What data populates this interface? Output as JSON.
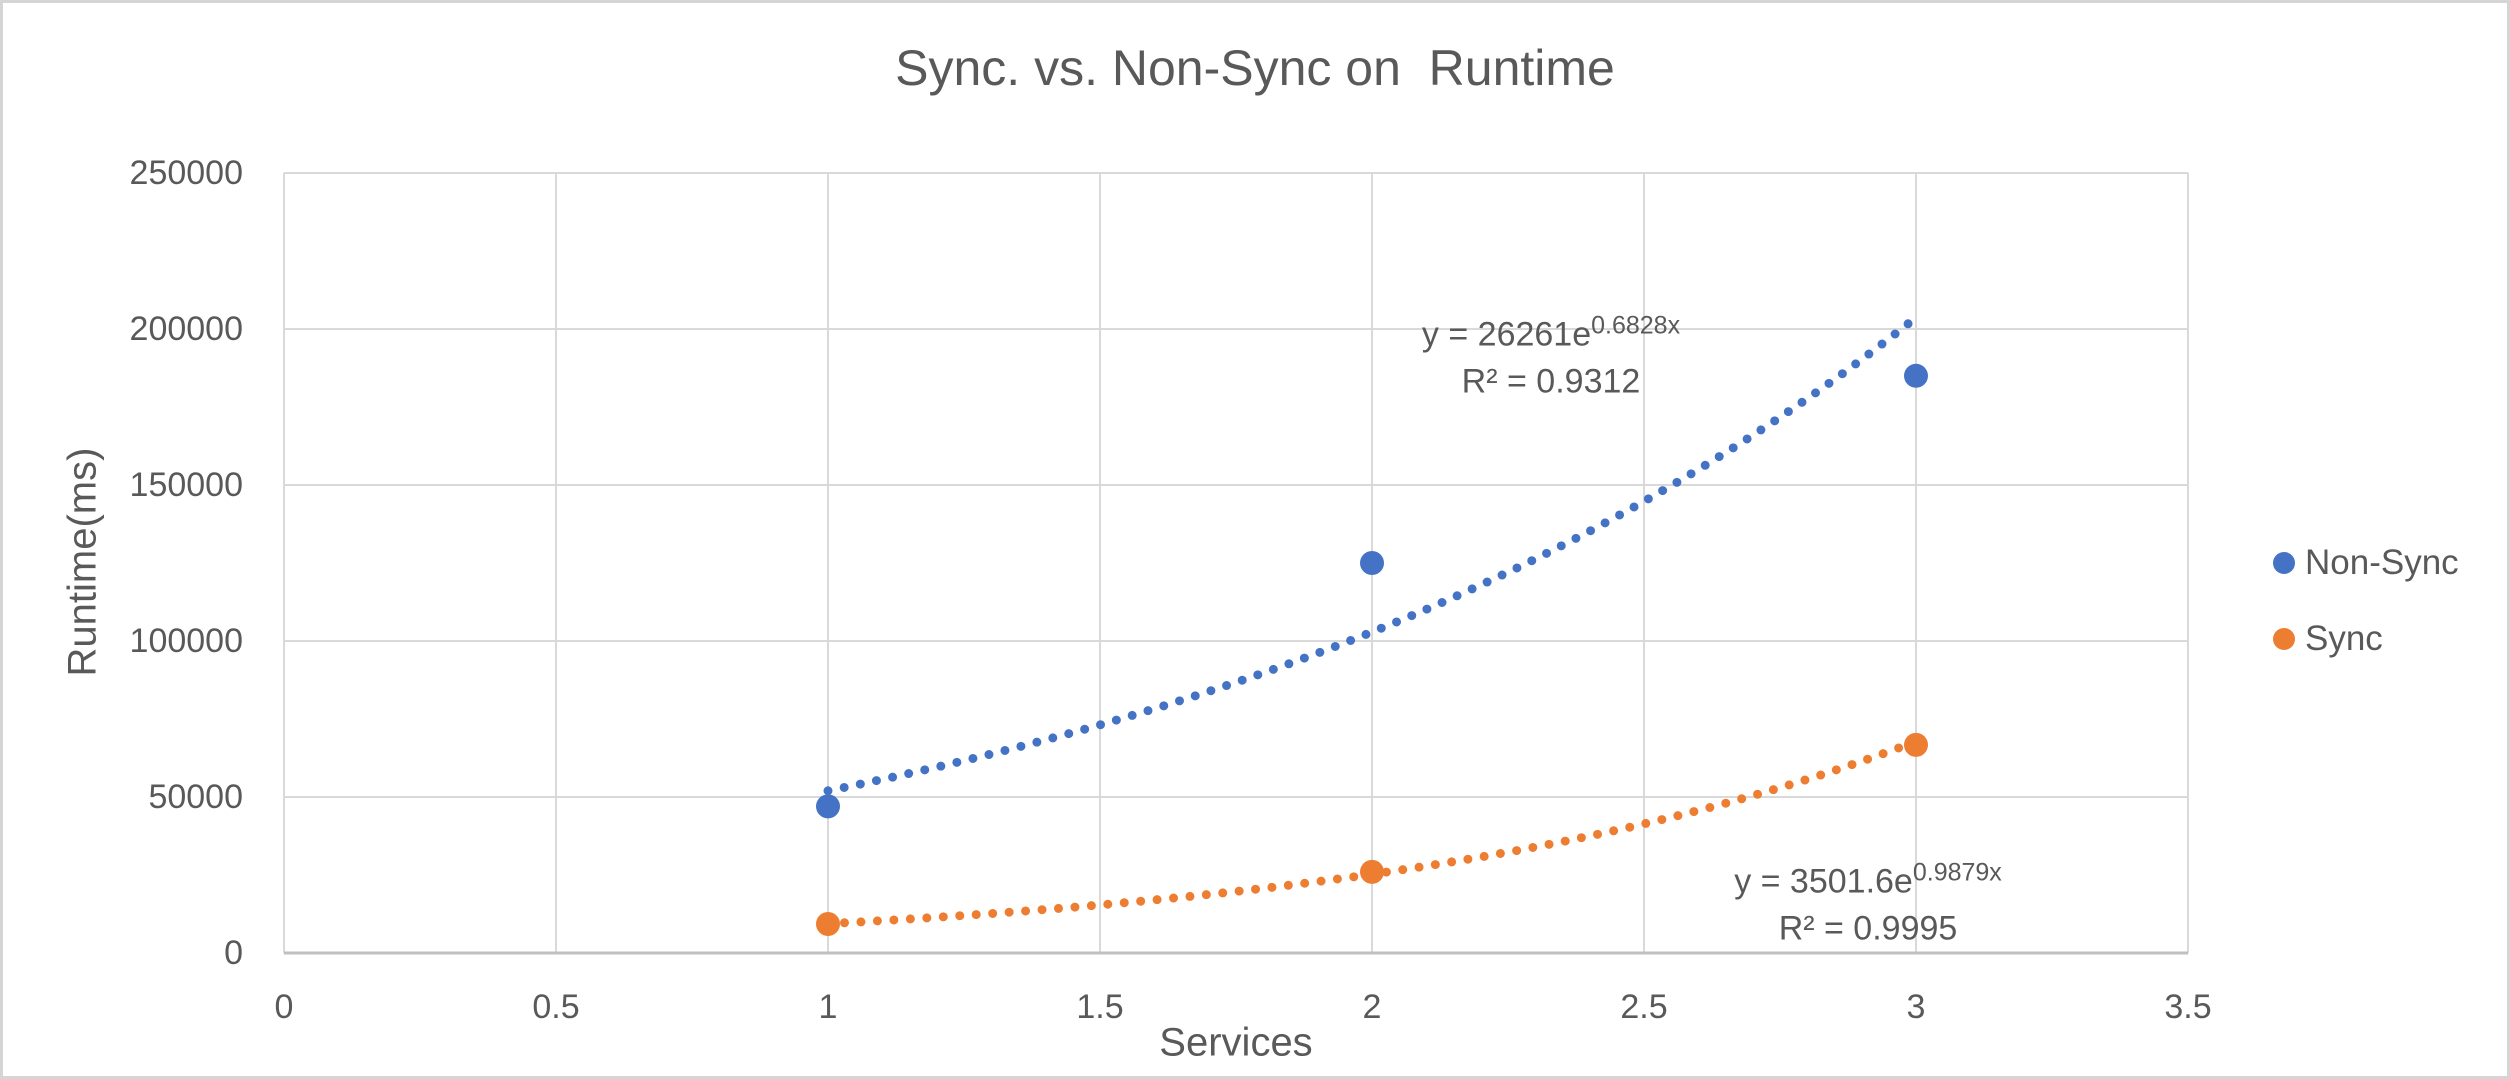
{
  "chart_data": {
    "type": "scatter",
    "title": "Sync. vs. Non-Sync on  Runtime",
    "xlabel": "Services",
    "ylabel": "Runtime(ms)",
    "xlim": [
      0,
      3.5
    ],
    "ylim": [
      0,
      250000
    ],
    "x_ticks": [
      0,
      0.5,
      1,
      1.5,
      2,
      2.5,
      3,
      3.5
    ],
    "y_ticks": [
      0,
      50000,
      100000,
      150000,
      200000,
      250000
    ],
    "grid": true,
    "legend_position": "right",
    "colors": {
      "text": "#595959",
      "gridline": "#d9d9d9",
      "axis_line": "#bfbfbf"
    },
    "series": [
      {
        "name": "Non-Sync",
        "color": "#4472C4",
        "x": [
          1,
          2,
          3
        ],
        "y": [
          47000,
          125000,
          185000
        ],
        "trendline": {
          "type": "exponential",
          "a": 26261,
          "b": 0.6828,
          "x_range": [
            1,
            3
          ],
          "equation_prefix": "y = 26261e",
          "equation_exponent": "0.6828x",
          "r2_label": "R² = 0.9312"
        }
      },
      {
        "name": "Sync",
        "color": "#ED7D31",
        "x": [
          1,
          2,
          3
        ],
        "y": [
          9300,
          26000,
          66700
        ],
        "trendline": {
          "type": "exponential",
          "a": 3501.6,
          "b": 0.9879,
          "x_range": [
            1,
            3
          ],
          "equation_prefix": "y = 3501.6e",
          "equation_exponent": "0.9879x",
          "r2_label": "R² = 0.9995"
        }
      }
    ]
  }
}
